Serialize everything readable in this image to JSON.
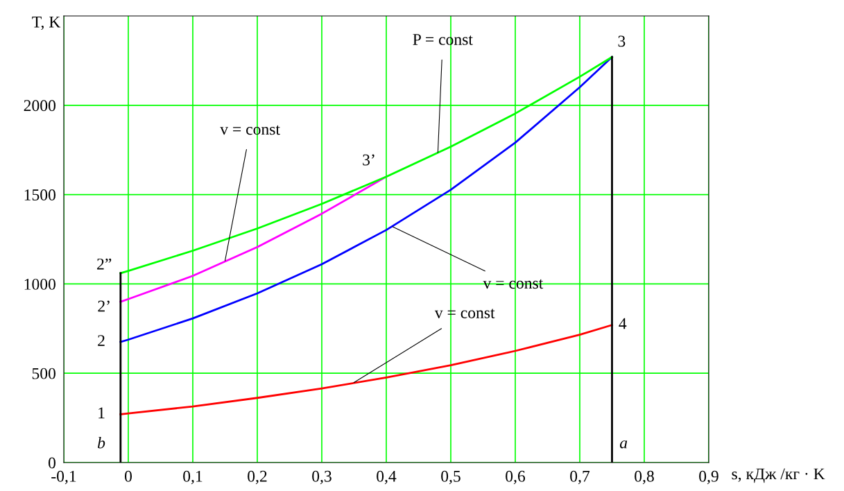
{
  "chart_data": {
    "type": "line",
    "xlabel": "s, кДж /кг · K",
    "ylabel": "T, K",
    "xlim": [
      -0.1,
      0.9
    ],
    "ylim": [
      0,
      2500
    ],
    "xticks": [
      {
        "value": -0.1,
        "label": "-0,1"
      },
      0,
      {
        "value": 0.1,
        "label": "0,1"
      },
      {
        "value": 0.2,
        "label": "0,2"
      },
      {
        "value": 0.3,
        "label": "0,3"
      },
      {
        "value": 0.4,
        "label": "0,4"
      },
      {
        "value": 0.5,
        "label": "0,5"
      },
      {
        "value": 0.6,
        "label": "0,6"
      },
      {
        "value": 0.7,
        "label": "0,7"
      },
      {
        "value": 0.8,
        "label": "0,8"
      },
      {
        "value": 0.9,
        "label": "0,9"
      }
    ],
    "yticks": [
      0,
      500,
      1000,
      1500,
      2000
    ],
    "grid": true,
    "legend": false,
    "marker": "none",
    "line_style": "solid",
    "series": [
      {
        "color": "#ff0000",
        "x": [
          -0.012,
          0,
          0.1,
          0.2,
          0.3,
          0.4,
          0.5,
          0.6,
          0.7,
          0.75
        ],
        "values": [
          270,
          275,
          314,
          362,
          415,
          476,
          545,
          625,
          716,
          770
        ]
      },
      {
        "color": "#0000ff",
        "x": [
          -0.012,
          0,
          0.1,
          0.2,
          0.3,
          0.4,
          0.5,
          0.6,
          0.7,
          0.75
        ],
        "values": [
          675,
          688,
          807,
          947,
          1110,
          1302,
          1527,
          1791,
          2101,
          2270
        ]
      },
      {
        "color": "#ff00ff",
        "x": [
          -0.012,
          0,
          0.1,
          0.2,
          0.3,
          0.4
        ],
        "values": [
          900,
          915,
          1045,
          1206,
          1393,
          1600
        ]
      },
      {
        "color": "#00ff00",
        "x": [
          -0.012,
          0,
          0.1,
          0.2,
          0.3,
          0.4,
          0.5,
          0.6,
          0.7,
          0.75
        ],
        "values": [
          1060,
          1073,
          1186,
          1310,
          1448,
          1600,
          1768,
          1954,
          2160,
          2270
        ]
      },
      {
        "color": "#000000",
        "x": [
          -0.012,
          -0.012
        ],
        "values": [
          0,
          1060
        ]
      },
      {
        "color": "#000000",
        "x": [
          0.75,
          0.75
        ],
        "values": [
          0,
          2270
        ]
      }
    ],
    "annotations": [
      {
        "text": "1",
        "x": -0.012,
        "y": 270
      },
      {
        "text": "2",
        "x": -0.012,
        "y": 675
      },
      {
        "text": "2’",
        "x": -0.012,
        "y": 900
      },
      {
        "text": "2”",
        "x": -0.012,
        "y": 1060
      },
      {
        "text": "3",
        "x": 0.75,
        "y": 2270
      },
      {
        "text": "3’",
        "x": 0.4,
        "y": 1600
      },
      {
        "text": "4",
        "x": 0.75,
        "y": 770
      },
      {
        "text": "a",
        "x": 0.75,
        "y": 0
      },
      {
        "text": "b",
        "x": -0.012,
        "y": 0
      },
      {
        "text": "P = const",
        "x": 0.48,
        "y": 1735
      },
      {
        "text": "v = const",
        "x": 0.15,
        "y": 1130
      },
      {
        "text": "v = const",
        "x": 0.41,
        "y": 1320
      },
      {
        "text": "v = const",
        "x": 0.35,
        "y": 448
      }
    ]
  }
}
